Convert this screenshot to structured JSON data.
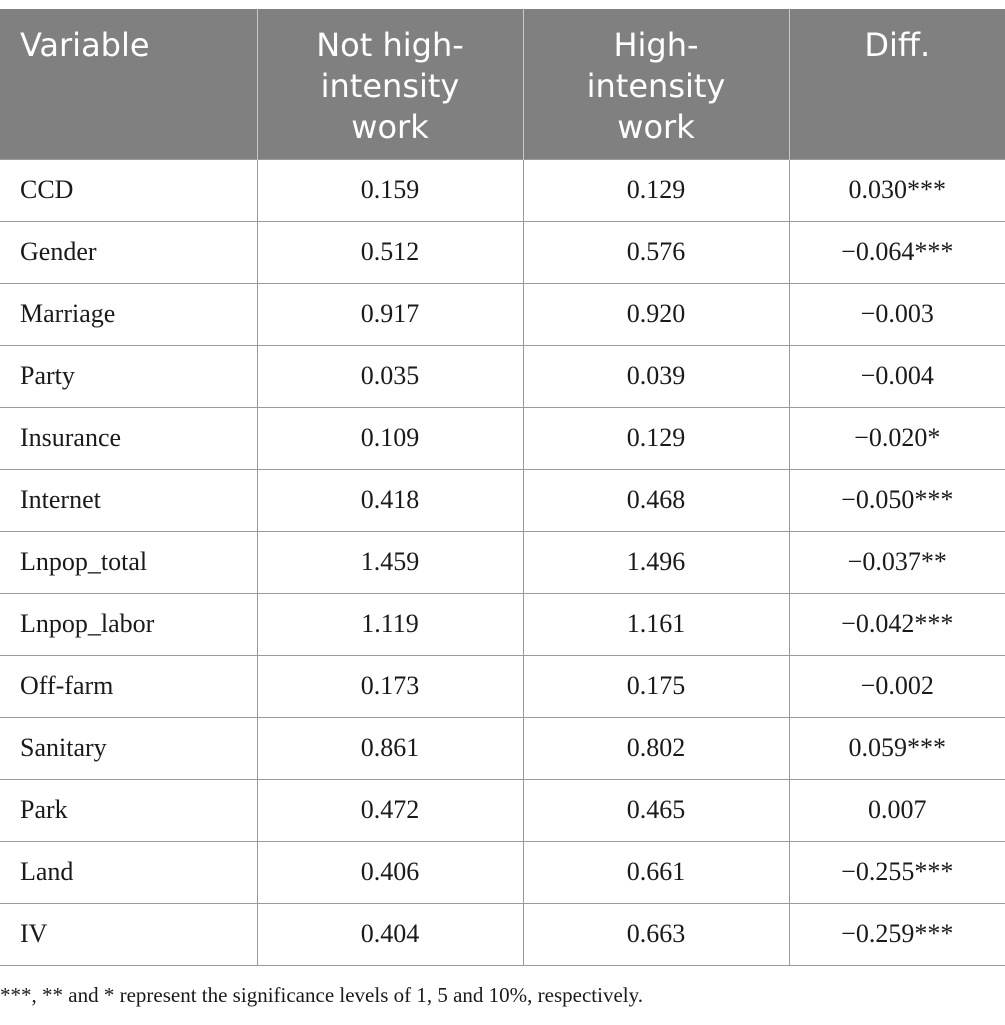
{
  "table": {
    "headers": [
      "Variable",
      "Not high-intensity work",
      "High-intensity work",
      "Diff."
    ],
    "header_lines": [
      [
        "Variable"
      ],
      [
        "Not high-",
        "intensity",
        "work"
      ],
      [
        "High-",
        "intensity",
        "work"
      ],
      [
        "Diff."
      ]
    ],
    "rows": [
      [
        "CCD",
        "0.159",
        "0.129",
        "0.030***"
      ],
      [
        "Gender",
        "0.512",
        "0.576",
        "−0.064***"
      ],
      [
        "Marriage",
        "0.917",
        "0.920",
        "−0.003"
      ],
      [
        "Party",
        "0.035",
        "0.039",
        "−0.004"
      ],
      [
        "Insurance",
        "0.109",
        "0.129",
        "−0.020*"
      ],
      [
        "Internet",
        "0.418",
        "0.468",
        "−0.050***"
      ],
      [
        "Lnpop_total",
        "1.459",
        "1.496",
        "−0.037**"
      ],
      [
        "Lnpop_labor",
        "1.119",
        "1.161",
        "−0.042***"
      ],
      [
        "Off-farm",
        "0.173",
        "0.175",
        "−0.002"
      ],
      [
        "Sanitary",
        "0.861",
        "0.802",
        "0.059***"
      ],
      [
        "Park",
        "0.472",
        "0.465",
        "0.007"
      ],
      [
        "Land",
        "0.406",
        "0.661",
        "−0.255***"
      ],
      [
        "IV",
        "0.404",
        "0.663",
        "−0.259***"
      ]
    ],
    "header_bg": "#808080",
    "header_text_color": "#ffffff"
  },
  "footnote": "***, ** and * represent the significance levels of 1, 5 and 10%, respectively."
}
